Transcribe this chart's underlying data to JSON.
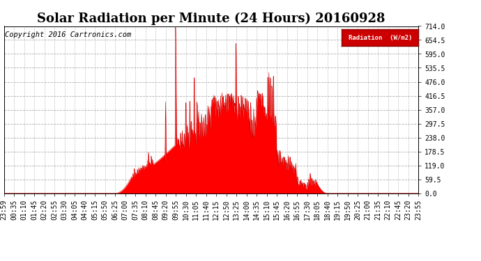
{
  "title": "Solar Radiation per Minute (24 Hours) 20160928",
  "copyright_text": "Copyright 2016 Cartronics.com",
  "legend_label": "Radiation  (W/m2)",
  "ylim": [
    0.0,
    714.0
  ],
  "yticks": [
    0.0,
    59.5,
    119.0,
    178.5,
    238.0,
    297.5,
    357.0,
    416.5,
    476.0,
    535.5,
    595.0,
    654.5,
    714.0
  ],
  "fill_color": "#ff0000",
  "line_color": "#cc0000",
  "bg_color": "#ffffff",
  "grid_color": "#999999",
  "zero_line_color": "#ff0000",
  "title_fontsize": 13,
  "copyright_fontsize": 7.5,
  "tick_fontsize": 7,
  "legend_bg": "#cc0000",
  "legend_text_color": "#ffffff",
  "tick_labels": [
    "23:59",
    "00:35",
    "01:10",
    "01:45",
    "02:20",
    "02:55",
    "03:30",
    "04:05",
    "04:40",
    "05:15",
    "05:50",
    "06:25",
    "07:00",
    "07:35",
    "08:10",
    "08:45",
    "09:20",
    "09:55",
    "10:30",
    "11:05",
    "11:40",
    "12:15",
    "12:50",
    "13:25",
    "14:00",
    "14:35",
    "15:10",
    "15:45",
    "16:20",
    "16:55",
    "17:30",
    "18:05",
    "18:40",
    "19:15",
    "19:50",
    "20:25",
    "21:00",
    "21:35",
    "22:10",
    "22:45",
    "23:20",
    "23:55"
  ]
}
